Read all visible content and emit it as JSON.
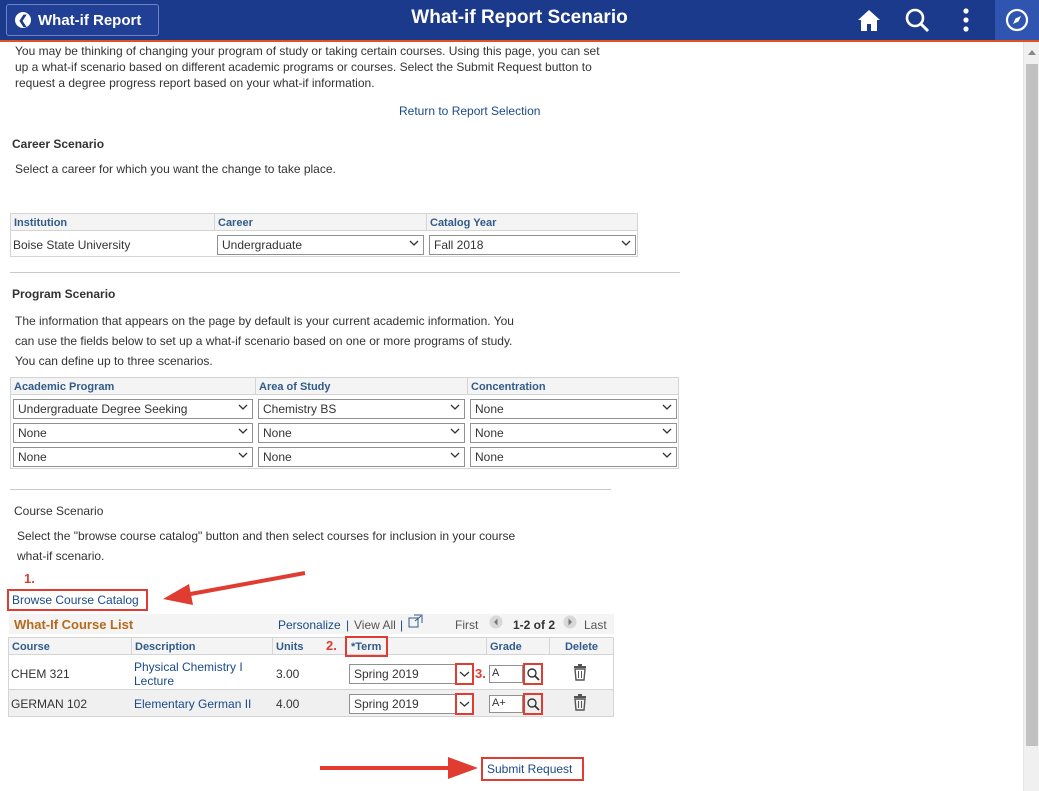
{
  "header": {
    "back_label": "What-if Report",
    "title": "What-if Report Scenario",
    "icons": [
      "home-icon",
      "search-icon",
      "kebab-menu-icon",
      "navbar-compass-icon"
    ]
  },
  "intro": "You may be thinking of changing your program of study or taking certain courses. Using this page, you can set up a what-if scenario based on different academic programs or courses. Select the Submit Request button to request a degree progress report based on your what-if information.",
  "return_link": "Return to Report Selection",
  "career": {
    "heading": "Career Scenario",
    "instruction": "Select a career for which you want the change to take place.",
    "columns": [
      "Institution",
      "Career",
      "Catalog Year"
    ],
    "institution": "Boise State University",
    "career_value": "Undergraduate",
    "catalog_year": "Fall 2018"
  },
  "program": {
    "heading": "Program Scenario",
    "line1": "The information that appears on the page by default is your current academic information. You",
    "line2": "can use the fields below to set up a what-if scenario based on one or more programs of study.",
    "line3": "You can define up to three scenarios.",
    "columns": [
      "Academic Program",
      "Area of Study",
      "Concentration"
    ],
    "rows": [
      [
        "Undergraduate Degree Seeking",
        "Chemistry BS",
        "None"
      ],
      [
        "None",
        "None",
        "None"
      ],
      [
        "None",
        "None",
        "None"
      ]
    ]
  },
  "course": {
    "heading": "Course Scenario",
    "line1": "Select the \"browse course catalog\" button and then select courses for inclusion in your course",
    "line2": "what-if scenario.",
    "browse_button": "Browse Course Catalog",
    "list_title": "What-If Course List",
    "personalize": "Personalize",
    "view_all": "View All",
    "sep": "|",
    "first": "First",
    "range": "1-2 of 2",
    "last": "Last",
    "columns": [
      "Course",
      "Description",
      "Units",
      "*Term",
      "Grade",
      "Delete"
    ],
    "rows": [
      {
        "course": "CHEM  321",
        "desc1": "Physical Chemistry I",
        "desc2": "Lecture",
        "units": "3.00",
        "term": "Spring 2019",
        "grade": "A"
      },
      {
        "course": "GERMAN  102",
        "desc1": "Elementary German II",
        "desc2": "",
        "units": "4.00",
        "term": "Spring 2019",
        "grade": "A+"
      }
    ]
  },
  "annotations": {
    "n1": "1.",
    "n2": "2.",
    "n3": "3.",
    "color": "#e03c31"
  },
  "submit": "Submit Request"
}
